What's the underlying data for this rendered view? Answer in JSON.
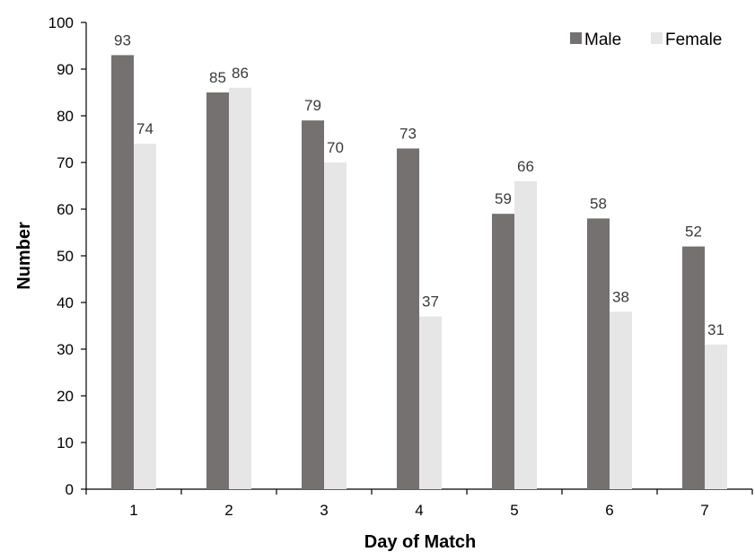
{
  "chart_data": {
    "type": "bar",
    "title": "",
    "xlabel": "Day of Match",
    "ylabel": "Number",
    "categories": [
      "1",
      "2",
      "3",
      "4",
      "5",
      "6",
      "7"
    ],
    "series": [
      {
        "name": "Male",
        "values": [
          93,
          85,
          79,
          73,
          59,
          58,
          52
        ],
        "color": "#757171"
      },
      {
        "name": "Female",
        "values": [
          74,
          86,
          70,
          37,
          66,
          38,
          31
        ],
        "color": "#e7e6e6"
      }
    ],
    "ylim": [
      0,
      100
    ],
    "yticks": [
      0,
      10,
      20,
      30,
      40,
      50,
      60,
      70,
      80,
      90,
      100
    ],
    "data_labels": true,
    "grid": false,
    "legend": "top-right"
  }
}
